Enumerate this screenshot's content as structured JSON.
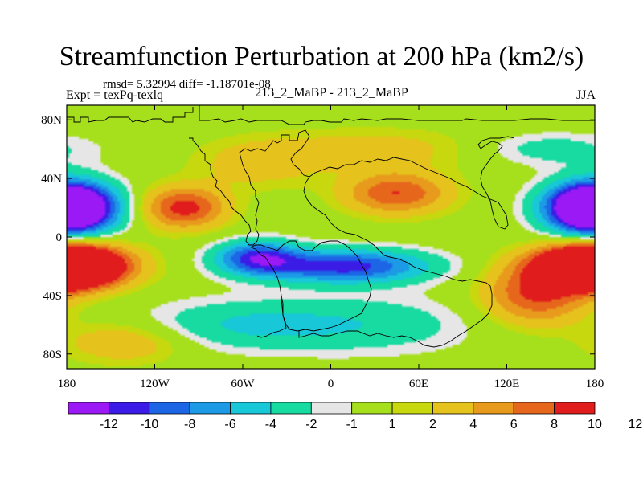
{
  "chart_data": {
    "type": "heatmap",
    "title": "Streamfunction Perturbation at 200 hPa (km2/s)",
    "stats_line": "rmsd= 5.32994 diff= -1.18701e-08",
    "experiment_label": "Expt = texPq-texlq",
    "case_label": "213_2_MaBP - 213_2_MaBP",
    "season_label": "JJA",
    "x_axis": {
      "range": [
        -180,
        180
      ],
      "ticks": [
        -180,
        -120,
        -60,
        0,
        60,
        120,
        180
      ],
      "tick_labels": [
        "180",
        "120W",
        "60W",
        "0",
        "60E",
        "120E",
        "180"
      ]
    },
    "y_axis": {
      "range": [
        -90,
        90
      ],
      "ticks": [
        80,
        40,
        0,
        -40,
        -80
      ],
      "tick_labels": [
        "80N",
        "40N",
        "0",
        "40S",
        "80S"
      ]
    },
    "colorbar": {
      "colors": [
        "#9b19f5",
        "#3a1ce6",
        "#1c66e6",
        "#1c9ae6",
        "#18c8d8",
        "#17dba0",
        "#e6e6e6",
        "#a6e01c",
        "#c8d80e",
        "#e6c21c",
        "#e89a1c",
        "#e6661c",
        "#e01c1c"
      ],
      "labels": [
        "-12",
        "-10",
        "-8",
        "-6",
        "-4",
        "-2",
        "-1",
        "1",
        "2",
        "4",
        "6",
        "8",
        "10",
        "12"
      ]
    },
    "centers": [
      {
        "lon": -180,
        "lat": 20,
        "value": -13,
        "spread_lon": 22,
        "spread_lat": 12
      },
      {
        "lon": 180,
        "lat": 20,
        "value": -13,
        "spread_lon": 22,
        "spread_lat": 12
      },
      {
        "lon": -180,
        "lat": -20,
        "value": 14,
        "spread_lon": 30,
        "spread_lat": 10
      },
      {
        "lon": 180,
        "lat": -20,
        "value": 14,
        "spread_lon": 22,
        "spread_lat": 10
      },
      {
        "lon": -50,
        "lat": -14,
        "value": -10,
        "spread_lon": 20,
        "spread_lat": 8
      },
      {
        "lon": 10,
        "lat": -20,
        "value": -11,
        "spread_lon": 40,
        "spread_lat": 8
      },
      {
        "lon": -100,
        "lat": 20,
        "value": 9,
        "spread_lon": 20,
        "spread_lat": 10
      },
      {
        "lon": 45,
        "lat": 30,
        "value": 8,
        "spread_lon": 25,
        "spread_lat": 10
      },
      {
        "lon": 140,
        "lat": -40,
        "value": 8,
        "spread_lon": 25,
        "spread_lat": 14
      },
      {
        "lon": -140,
        "lat": -72,
        "value": 4,
        "spread_lon": 30,
        "spread_lat": 10
      },
      {
        "lon": 150,
        "lat": 60,
        "value": -3,
        "spread_lon": 35,
        "spread_lat": 8
      },
      {
        "lon": 30,
        "lat": 60,
        "value": 3,
        "spread_lon": 50,
        "spread_lat": 10
      },
      {
        "lon": -50,
        "lat": 50,
        "value": 3,
        "spread_lon": 30,
        "spread_lat": 12
      },
      {
        "lon": -60,
        "lat": -60,
        "value": -4,
        "spread_lon": 50,
        "spread_lat": 12
      },
      {
        "lon": 30,
        "lat": -60,
        "value": -3,
        "spread_lon": 50,
        "spread_lat": 14
      }
    ]
  }
}
